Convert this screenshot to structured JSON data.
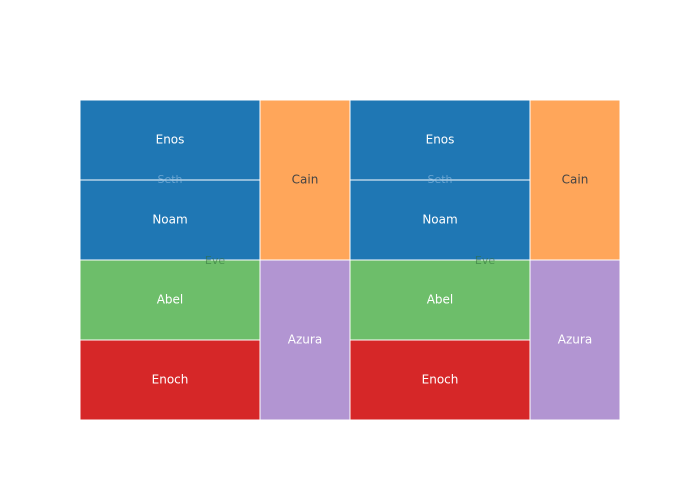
{
  "chart_data": [
    {
      "type": "treemap",
      "root_label": "Eve",
      "items": [
        {
          "label": "Seth",
          "parent": "Eve",
          "value": 2,
          "color": "#1f77b4",
          "children": [
            "Enos",
            "Noam"
          ],
          "label_color": "#9fc6e8"
        },
        {
          "label": "Enos",
          "parent": "Seth",
          "value": 1,
          "color": "#1f77b4",
          "label_color": "#ffffff"
        },
        {
          "label": "Noam",
          "parent": "Seth",
          "value": 1,
          "color": "#1f77b4",
          "label_color": "#ffffff"
        },
        {
          "label": "Cain",
          "parent": "Eve",
          "value": 1,
          "color": "#ffa65a",
          "label_color": "#444444"
        },
        {
          "label": "Abel",
          "parent": "Eve",
          "value": 1,
          "color": "#6dbe6a",
          "label_color": "#ffffff"
        },
        {
          "label": "Enoch",
          "parent": "Eve",
          "value": 1,
          "color": "#d62728",
          "label_color": "#ffffff"
        },
        {
          "label": "Azura",
          "parent": "Eve",
          "value": 1,
          "color": "#b295d2",
          "label_color": "#ffffff"
        }
      ]
    },
    {
      "type": "treemap",
      "root_label": "Eve",
      "items": [
        {
          "label": "Seth",
          "parent": "Eve",
          "value": 2,
          "color": "#1f77b4",
          "children": [
            "Enos",
            "Noam"
          ],
          "label_color": "#9fc6e8"
        },
        {
          "label": "Enos",
          "parent": "Seth",
          "value": 1,
          "color": "#1f77b4",
          "label_color": "#ffffff"
        },
        {
          "label": "Noam",
          "parent": "Seth",
          "value": 1,
          "color": "#1f77b4",
          "label_color": "#ffffff"
        },
        {
          "label": "Cain",
          "parent": "Eve",
          "value": 1,
          "color": "#ffa65a",
          "label_color": "#444444"
        },
        {
          "label": "Abel",
          "parent": "Eve",
          "value": 1,
          "color": "#6dbe6a",
          "label_color": "#ffffff"
        },
        {
          "label": "Enoch",
          "parent": "Eve",
          "value": 1,
          "color": "#d62728",
          "label_color": "#ffffff"
        },
        {
          "label": "Azura",
          "parent": "Eve",
          "value": 1,
          "color": "#b295d2",
          "label_color": "#ffffff"
        }
      ]
    }
  ]
}
